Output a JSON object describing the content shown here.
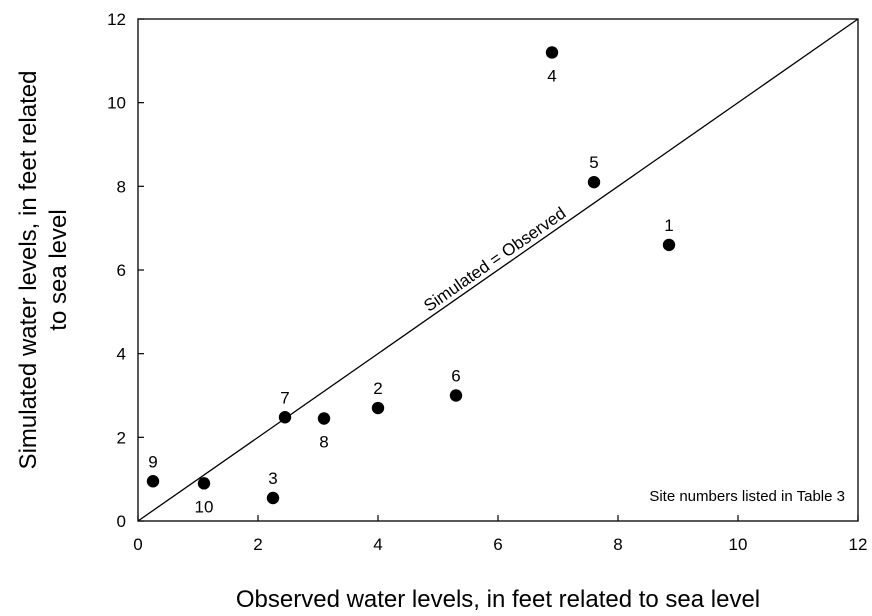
{
  "chart_data": {
    "type": "scatter",
    "title": "",
    "xlabel": "Observed water levels, in feet related to sea level",
    "ylabel_line1": "Simulated water levels, in feet related",
    "ylabel_line2": "to sea level",
    "xlim": [
      0,
      12
    ],
    "ylim": [
      0,
      12
    ],
    "x_ticks": [
      0,
      2,
      4,
      6,
      8,
      10,
      12
    ],
    "y_ticks": [
      0,
      2,
      4,
      6,
      8,
      10,
      12
    ],
    "x_tick_labels": [
      "0",
      "2",
      "4",
      "6",
      "8",
      "10",
      "12"
    ],
    "y_tick_labels": [
      "0",
      "2",
      "4",
      "6",
      "8",
      "10",
      "12"
    ],
    "grid": false,
    "points": [
      {
        "label": "1",
        "x": 8.85,
        "y": 6.6,
        "label_pos": "above"
      },
      {
        "label": "2",
        "x": 4.0,
        "y": 2.7,
        "label_pos": "above"
      },
      {
        "label": "3",
        "x": 2.25,
        "y": 0.55,
        "label_pos": "above"
      },
      {
        "label": "4",
        "x": 6.9,
        "y": 11.2,
        "label_pos": "below"
      },
      {
        "label": "5",
        "x": 7.6,
        "y": 8.1,
        "label_pos": "above"
      },
      {
        "label": "6",
        "x": 5.3,
        "y": 3.0,
        "label_pos": "above"
      },
      {
        "label": "7",
        "x": 2.45,
        "y": 2.48,
        "label_pos": "above"
      },
      {
        "label": "8",
        "x": 3.1,
        "y": 2.45,
        "label_pos": "below"
      },
      {
        "label": "9",
        "x": 0.25,
        "y": 0.95,
        "label_pos": "above"
      },
      {
        "label": "10",
        "x": 1.1,
        "y": 0.9,
        "label_pos": "below"
      }
    ],
    "reference_line": {
      "label": "Simulated = Observed",
      "from": [
        0,
        0
      ],
      "to": [
        12,
        12
      ]
    },
    "annotation": "Site numbers listed in Table 3"
  }
}
